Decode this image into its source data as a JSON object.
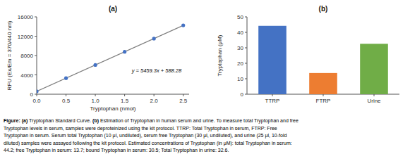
{
  "chart_data": [
    {
      "type": "scatter",
      "title": "(a)",
      "x_label": "Tryptophan (nmol)",
      "y_label": "RFU (Ex/Em = 370/440 nm)",
      "series": [
        {
          "type": "line",
          "color": "#808080",
          "x": [
            0,
            2.5
          ],
          "values": [
            588.28,
            14236.53
          ]
        },
        {
          "type": "scatter",
          "color": "#4472c4",
          "x": [
            0,
            0.5,
            1.0,
            1.5,
            2.0,
            2.5
          ],
          "values": [
            588.28,
            3317.93,
            6047.58,
            8777.23,
            11506.88,
            14236.53
          ]
        }
      ],
      "xlim": [
        0,
        2.6
      ],
      "xticks": [
        {
          "value": 0,
          "label": "0.0"
        },
        0.5,
        {
          "value": 1.0,
          "label": "1.0"
        },
        1.5,
        {
          "value": 2.0,
          "label": "2.0"
        },
        2.5
      ],
      "ylim": [
        0,
        16000
      ],
      "yticks": [
        0,
        4000,
        8000,
        12000,
        16000
      ],
      "annotations": [
        "y = 5459.3x + 588.28"
      ],
      "grid": false
    },
    {
      "type": "bar",
      "title": "(b)",
      "y_label": "Tryptophan (μM)",
      "categories": [
        "TTRP",
        "FTRP",
        "Urine"
      ],
      "values": [
        44.2,
        13.7,
        32.6
      ],
      "colors": [
        "#4472c4",
        "#ed7d31",
        "#70ad47"
      ],
      "ylim": [
        0,
        50
      ],
      "yticks": [
        0,
        10,
        20,
        30,
        40,
        50
      ],
      "grid": false
    }
  ],
  "caption": {
    "lines": [
      {
        "segments": [
          {
            "text": "Figure:",
            "bold": true
          },
          {
            "text": " ",
            "bold": false
          },
          {
            "text": "(a)",
            "bold": true
          },
          {
            "text": " Tryptophan Standard Curve. ",
            "bold": false
          },
          {
            "text": "(b)",
            "bold": true
          },
          {
            "text": " Estimation of Tryptophan in human serum and urine. To measure total Tryptophan and free",
            "bold": false
          }
        ]
      },
      {
        "segments": [
          {
            "text": "Tryptophan levels in serum, samples were deproteinized using the kit protocol. TTRP: Total Tryptophan in serum, FTRP: Free",
            "bold": false
          }
        ]
      },
      {
        "segments": [
          {
            "text": "Tryptophan in serum. Serum total Tryptophan (10 μl, undiluted), serum free Tryptophan (30 μl, undiluted), and urine (25 μl, 10-fold",
            "bold": false
          }
        ]
      },
      {
        "segments": [
          {
            "text": "diluted) samples were assayed following the kit protocol. Estimated concentrations of Tryptophan (in μM): total Tryptophan in serum:",
            "bold": false
          }
        ]
      },
      {
        "segments": [
          {
            "text": "44.2; free Tryptophan in serum: 13.7; bound Tryptophan in serum: 30.5; Total Tryptophan in urine: 32.6.",
            "bold": false
          }
        ]
      }
    ]
  }
}
